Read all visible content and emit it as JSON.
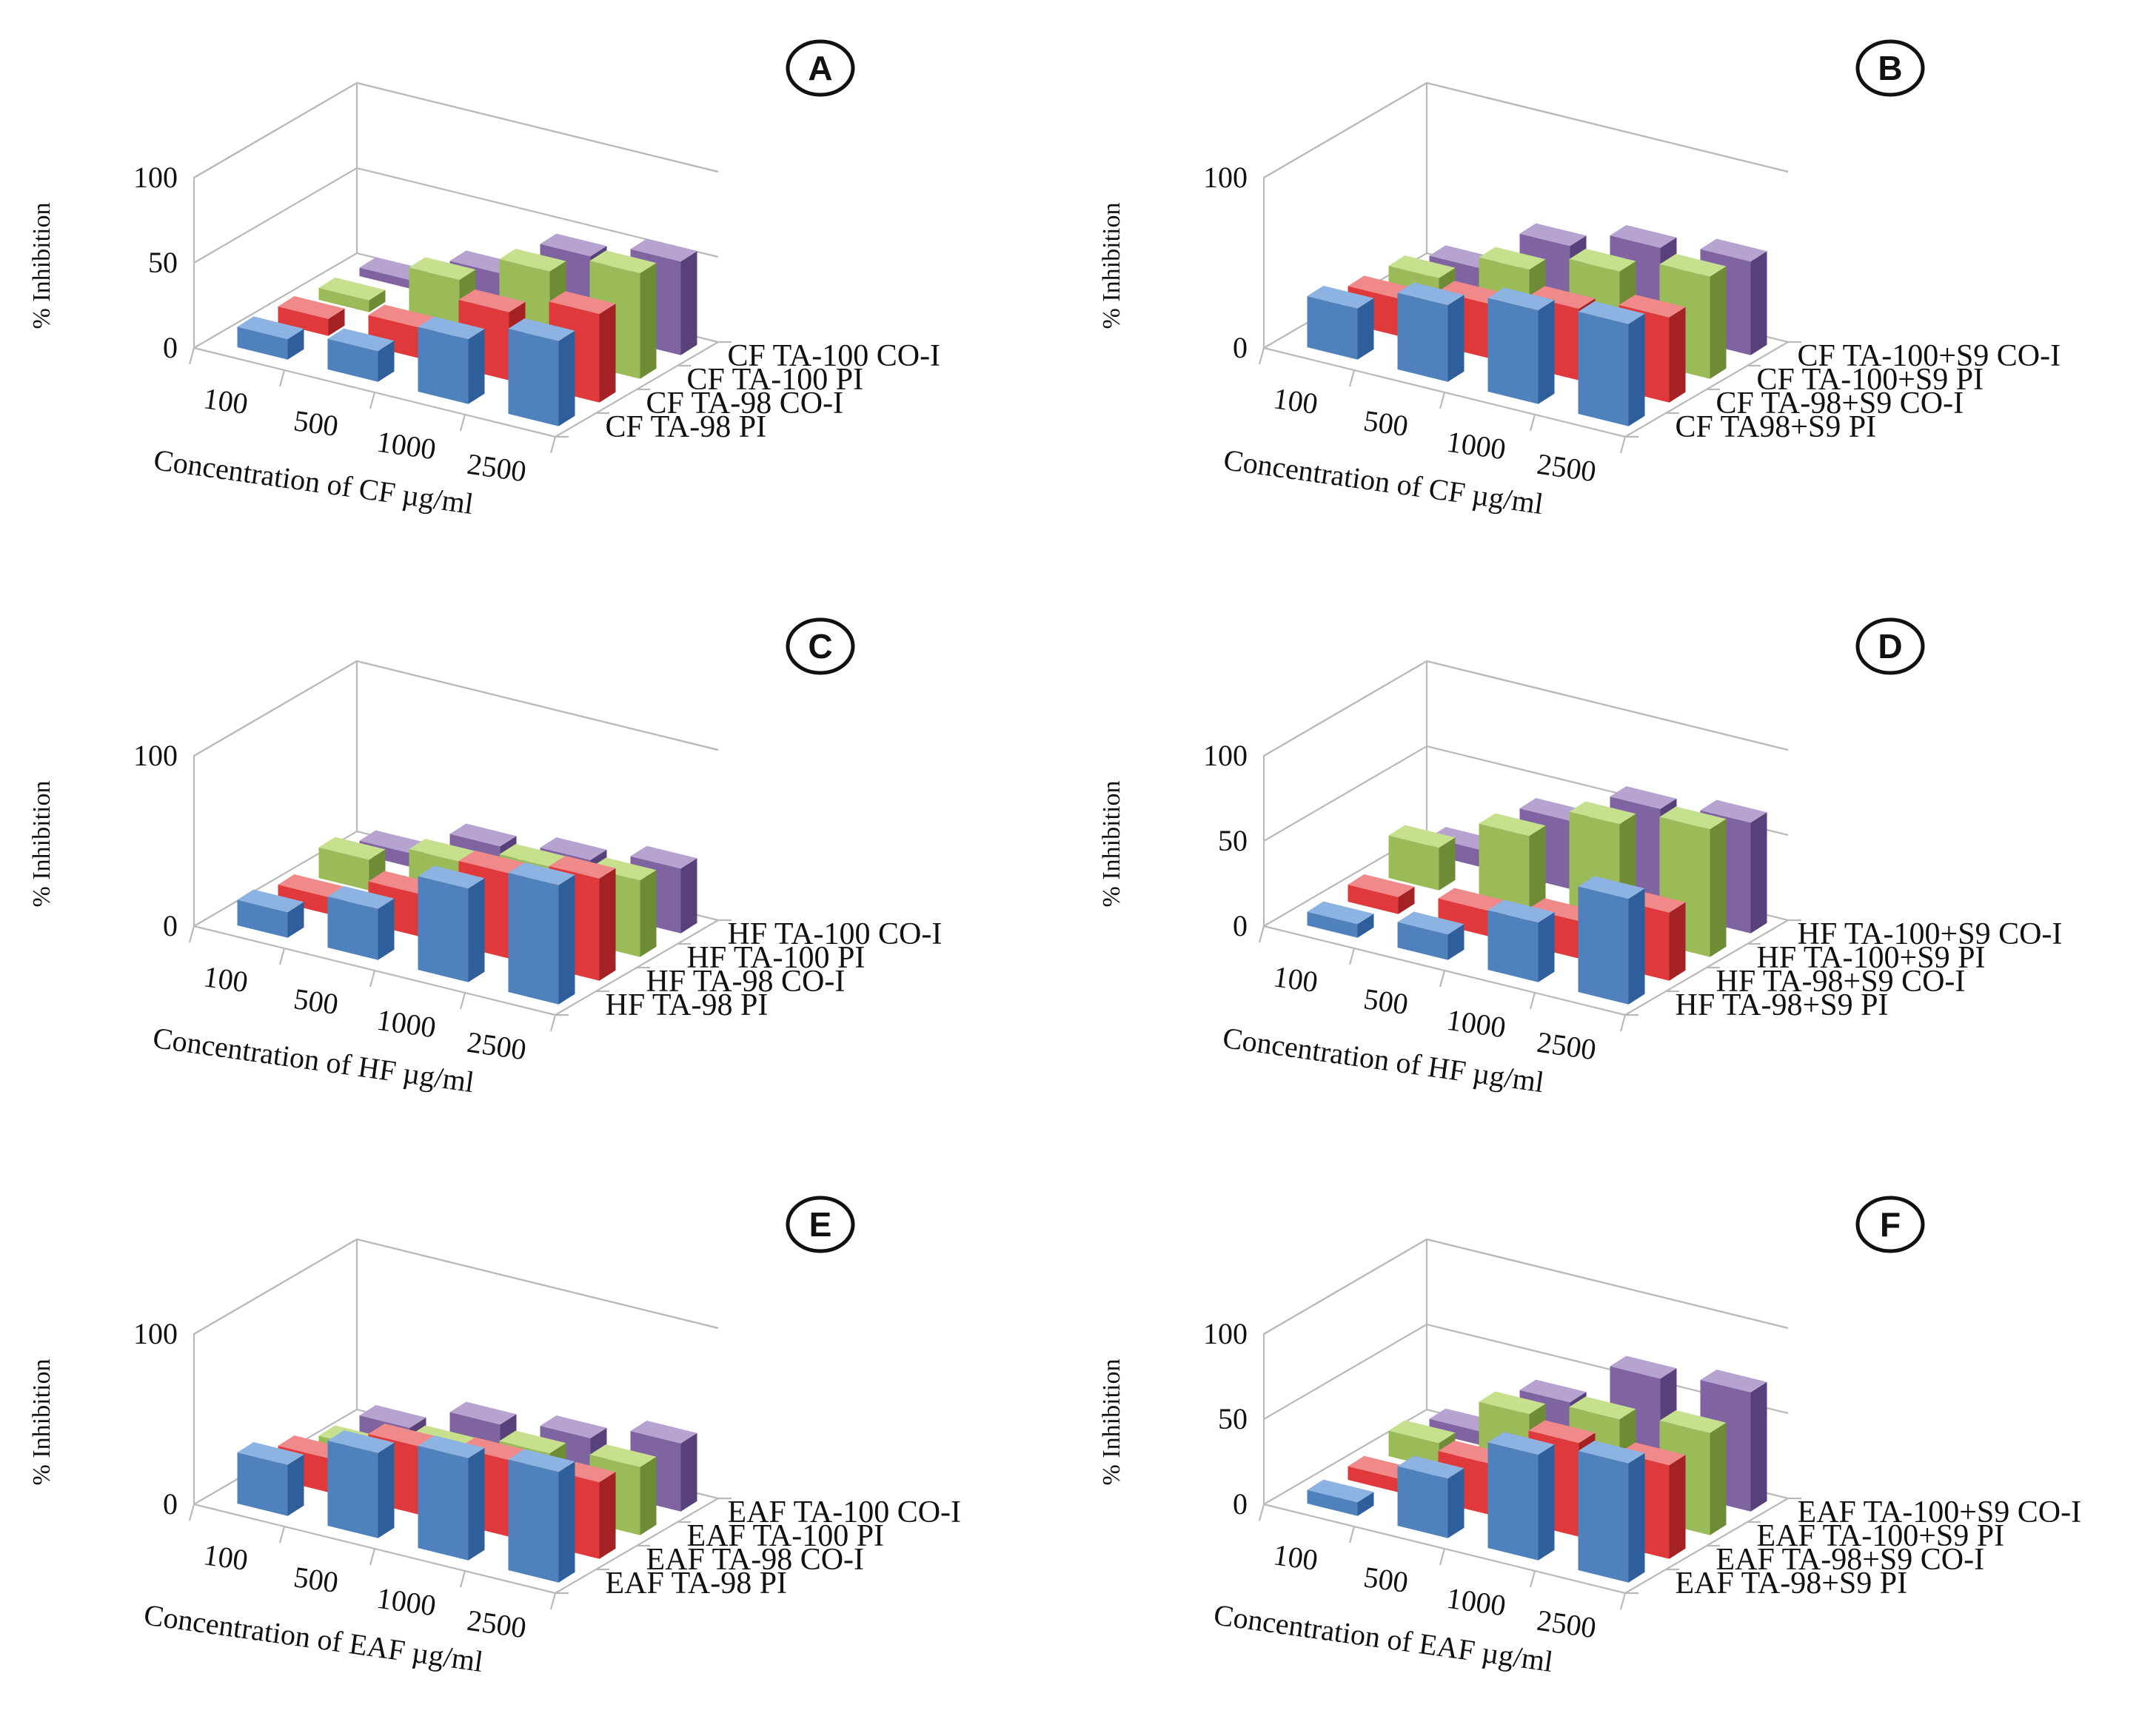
{
  "palette": {
    "blue": {
      "front": "#4F81BD",
      "top": "#8DB3E2",
      "side": "#2E5F9A"
    },
    "red": {
      "front": "#E0393B",
      "top": "#F08A8A",
      "side": "#A52224"
    },
    "green": {
      "front": "#9BBB59",
      "top": "#C7E08E",
      "side": "#6E8C35"
    },
    "purple": {
      "front": "#8064A2",
      "top": "#B7A3D0",
      "side": "#58407A"
    }
  },
  "chart_data": [
    {
      "panel": "A",
      "type": "bar3d",
      "title": "",
      "ylabel": "% Inhibition",
      "xlabel": "Concentration of  CF µg/ml",
      "categories": [
        "100",
        "500",
        "1000",
        "2500"
      ],
      "yticks": [
        "0",
        "50",
        "100"
      ],
      "ylim": [
        0,
        100
      ],
      "series": [
        {
          "name": "CF TA-98 PI",
          "color": "blue",
          "values": [
            12,
            18,
            38,
            50
          ]
        },
        {
          "name": "CF TA-98 CO-I",
          "color": "red",
          "values": [
            10,
            18,
            40,
            52
          ]
        },
        {
          "name": "CF TA-100 PI",
          "color": "green",
          "values": [
            7,
            32,
            50,
            62
          ]
        },
        {
          "name": "CF TA-100 CO-I",
          "color": "purple",
          "values": [
            5,
            22,
            45,
            55
          ]
        }
      ]
    },
    {
      "panel": "B",
      "type": "bar3d",
      "title": "",
      "ylabel": "% Inhibition",
      "xlabel": "Concentration of CF µg/ml",
      "categories": [
        "100",
        "500",
        "1000",
        "2500"
      ],
      "yticks": [
        "0",
        "100"
      ],
      "ylim": [
        0,
        100
      ],
      "series": [
        {
          "name": "CF TA98+S9 PI",
          "color": "blue",
          "values": [
            30,
            45,
            55,
            60
          ]
        },
        {
          "name": "CF TA-98+S9 CO-I",
          "color": "red",
          "values": [
            22,
            32,
            42,
            50
          ]
        },
        {
          "name": "CF TA-100+S9 PI",
          "color": "green",
          "values": [
            20,
            38,
            50,
            60
          ]
        },
        {
          "name": "CF TA-100+S9 CO-I",
          "color": "purple",
          "values": [
            12,
            38,
            50,
            55
          ]
        }
      ]
    },
    {
      "panel": "C",
      "type": "bar3d",
      "title": "",
      "ylabel": "% Inhibition",
      "xlabel": "Concentration of HF µg/ml",
      "categories": [
        "100",
        "500",
        "1000",
        "2500"
      ],
      "yticks": [
        "0",
        "100"
      ],
      "ylim": [
        0,
        100
      ],
      "series": [
        {
          "name": "HF TA-98 PI",
          "color": "blue",
          "values": [
            15,
            30,
            55,
            70
          ]
        },
        {
          "name": "HF TA-98 CO-I",
          "color": "red",
          "values": [
            10,
            25,
            50,
            60
          ]
        },
        {
          "name": "HF TA-100 PI",
          "color": "green",
          "values": [
            18,
            30,
            40,
            45
          ]
        },
        {
          "name": "HF TA-100 CO-I",
          "color": "purple",
          "values": [
            8,
            25,
            30,
            38
          ]
        }
      ]
    },
    {
      "panel": "D",
      "type": "bar3d",
      "title": "",
      "ylabel": "% Inhibition",
      "xlabel": "Concentration of HF µg/ml",
      "categories": [
        "100",
        "500",
        "1000",
        "2500"
      ],
      "yticks": [
        "0",
        "50",
        "100"
      ],
      "ylim": [
        0,
        100
      ],
      "series": [
        {
          "name": "HF TA-98+S9 PI",
          "color": "blue",
          "values": [
            8,
            15,
            35,
            62
          ]
        },
        {
          "name": "HF TA-98+S9 CO-I",
          "color": "red",
          "values": [
            10,
            15,
            22,
            40
          ]
        },
        {
          "name": "HF TA-100+S9 PI",
          "color": "green",
          "values": [
            25,
            45,
            65,
            75
          ]
        },
        {
          "name": "HF TA-100+S9 CO-I",
          "color": "purple",
          "values": [
            10,
            40,
            60,
            65
          ]
        }
      ]
    },
    {
      "panel": "E",
      "type": "bar3d",
      "title": "",
      "ylabel": "% Inhibition",
      "xlabel": "Concentration of EAF µg/ml",
      "categories": [
        "100",
        "500",
        "1000",
        "2500"
      ],
      "yticks": [
        "0",
        "100"
      ],
      "ylim": [
        0,
        100
      ],
      "series": [
        {
          "name": "EAF TA-98 PI",
          "color": "blue",
          "values": [
            30,
            50,
            60,
            65
          ]
        },
        {
          "name": "EAF TA-98 CO-I",
          "color": "red",
          "values": [
            20,
            40,
            45,
            45
          ]
        },
        {
          "name": "EAF TA-100 PI",
          "color": "green",
          "values": [
            12,
            25,
            35,
            40
          ]
        },
        {
          "name": "EAF TA-100 CO-I",
          "color": "purple",
          "values": [
            10,
            25,
            30,
            40
          ]
        }
      ]
    },
    {
      "panel": "F",
      "type": "bar3d",
      "title": "",
      "ylabel": "% Inhibition",
      "xlabel": "Concentration of EAF µg/ml",
      "categories": [
        "100",
        "500",
        "1000",
        "2500"
      ],
      "yticks": [
        "0",
        "50",
        "100"
      ],
      "ylim": [
        0,
        100
      ],
      "series": [
        {
          "name": "EAF TA-98+S9 PI",
          "color": "blue",
          "values": [
            8,
            35,
            62,
            70
          ]
        },
        {
          "name": "EAF TA-98+S9 CO-I",
          "color": "red",
          "values": [
            8,
            30,
            55,
            55
          ]
        },
        {
          "name": "EAF TA-100+S9 PI",
          "color": "green",
          "values": [
            15,
            45,
            55,
            60
          ]
        },
        {
          "name": "EAF TA-100+S9 CO-I",
          "color": "purple",
          "values": [
            8,
            38,
            65,
            70
          ]
        }
      ]
    }
  ]
}
